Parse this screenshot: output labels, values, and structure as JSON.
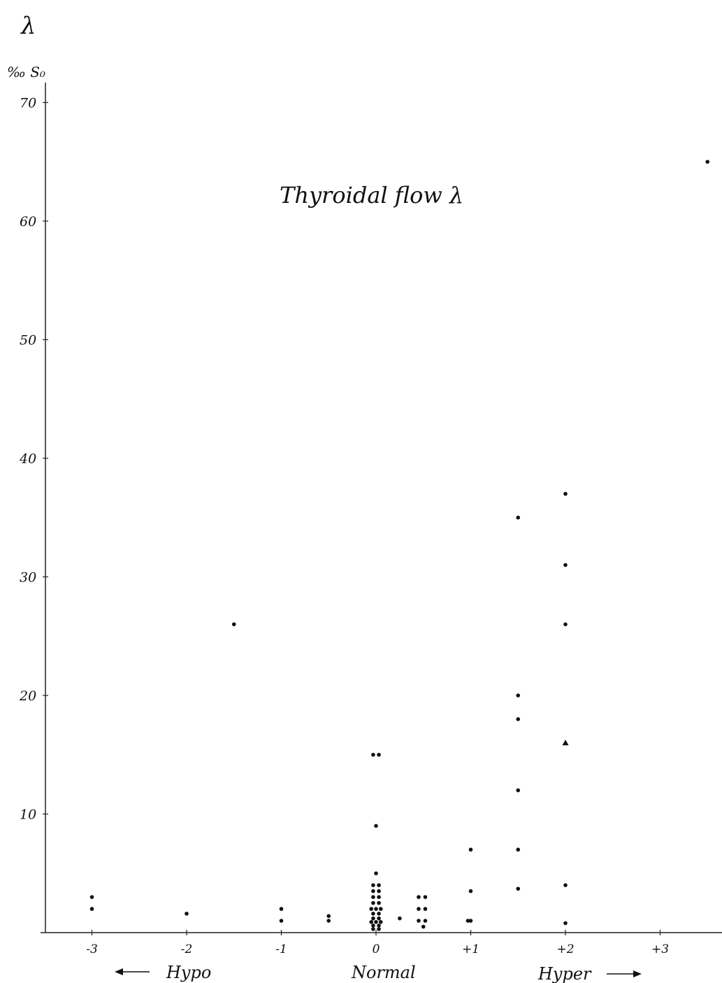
{
  "chart_data": {
    "type": "scatter",
    "corner_symbol": "λ",
    "title": "Thyroidal flow   λ",
    "ylabel": "‰ S₀",
    "xlabel": "",
    "xlim": [
      -3.5,
      3.5
    ],
    "ylim": [
      0,
      70
    ],
    "x_ticks": [
      {
        "value": -3,
        "label": "-3"
      },
      {
        "value": -2,
        "label": "-2"
      },
      {
        "value": -1,
        "label": "-1"
      },
      {
        "value": 0,
        "label": "0"
      },
      {
        "value": 1,
        "label": "+1"
      },
      {
        "value": 2,
        "label": "+2"
      },
      {
        "value": 3,
        "label": "+3"
      }
    ],
    "y_ticks": [
      {
        "value": 10,
        "label": "10"
      },
      {
        "value": 20,
        "label": "20"
      },
      {
        "value": 30,
        "label": "30"
      },
      {
        "value": 40,
        "label": "40"
      },
      {
        "value": 50,
        "label": "50"
      },
      {
        "value": 60,
        "label": "60"
      },
      {
        "value": 70,
        "label": "70"
      }
    ],
    "region_labels": [
      "Hypo",
      "Normal",
      "Hyper"
    ],
    "grid": false,
    "legend": "none",
    "point_color": "#111111",
    "series": [
      {
        "marker": "dot",
        "points": [
          [
            -3,
            3
          ],
          [
            -3,
            2
          ],
          [
            -2,
            1.6
          ],
          [
            -1.5,
            26
          ],
          [
            -1,
            2
          ],
          [
            -1,
            1
          ],
          [
            -0.5,
            1.4
          ],
          [
            -0.5,
            1
          ],
          [
            -0.03,
            15
          ],
          [
            0.03,
            15
          ],
          [
            0,
            9
          ],
          [
            0,
            5
          ],
          [
            -0.03,
            4
          ],
          [
            0.03,
            4
          ],
          [
            -0.03,
            3.5
          ],
          [
            0.03,
            3.5
          ],
          [
            -0.03,
            3
          ],
          [
            0.03,
            3
          ],
          [
            -0.03,
            2.5
          ],
          [
            0.03,
            2.5
          ],
          [
            -0.05,
            2
          ],
          [
            0,
            2
          ],
          [
            0.05,
            2
          ],
          [
            -0.03,
            1.6
          ],
          [
            0.03,
            1.6
          ],
          [
            -0.03,
            1.2
          ],
          [
            0.03,
            1.2
          ],
          [
            -0.05,
            0.9
          ],
          [
            0,
            0.9
          ],
          [
            0.05,
            0.9
          ],
          [
            -0.03,
            0.6
          ],
          [
            0.03,
            0.6
          ],
          [
            -0.03,
            0.3
          ],
          [
            0.03,
            0.3
          ],
          [
            0.25,
            1.2
          ],
          [
            0.45,
            3
          ],
          [
            0.52,
            3
          ],
          [
            0.45,
            2
          ],
          [
            0.52,
            2
          ],
          [
            0.45,
            1
          ],
          [
            0.52,
            1
          ],
          [
            0.5,
            0.5
          ],
          [
            1,
            7
          ],
          [
            1,
            3.5
          ],
          [
            1,
            1
          ],
          [
            0.97,
            1
          ],
          [
            1.5,
            35
          ],
          [
            1.5,
            20
          ],
          [
            1.5,
            18
          ],
          [
            1.5,
            12
          ],
          [
            1.5,
            7
          ],
          [
            1.5,
            3.7
          ],
          [
            2,
            37
          ],
          [
            2,
            31
          ],
          [
            2,
            26
          ],
          [
            2,
            4
          ],
          [
            2,
            0.8
          ],
          [
            3.5,
            65
          ]
        ]
      },
      {
        "marker": "triangle",
        "points": [
          [
            2,
            16
          ]
        ]
      }
    ]
  }
}
